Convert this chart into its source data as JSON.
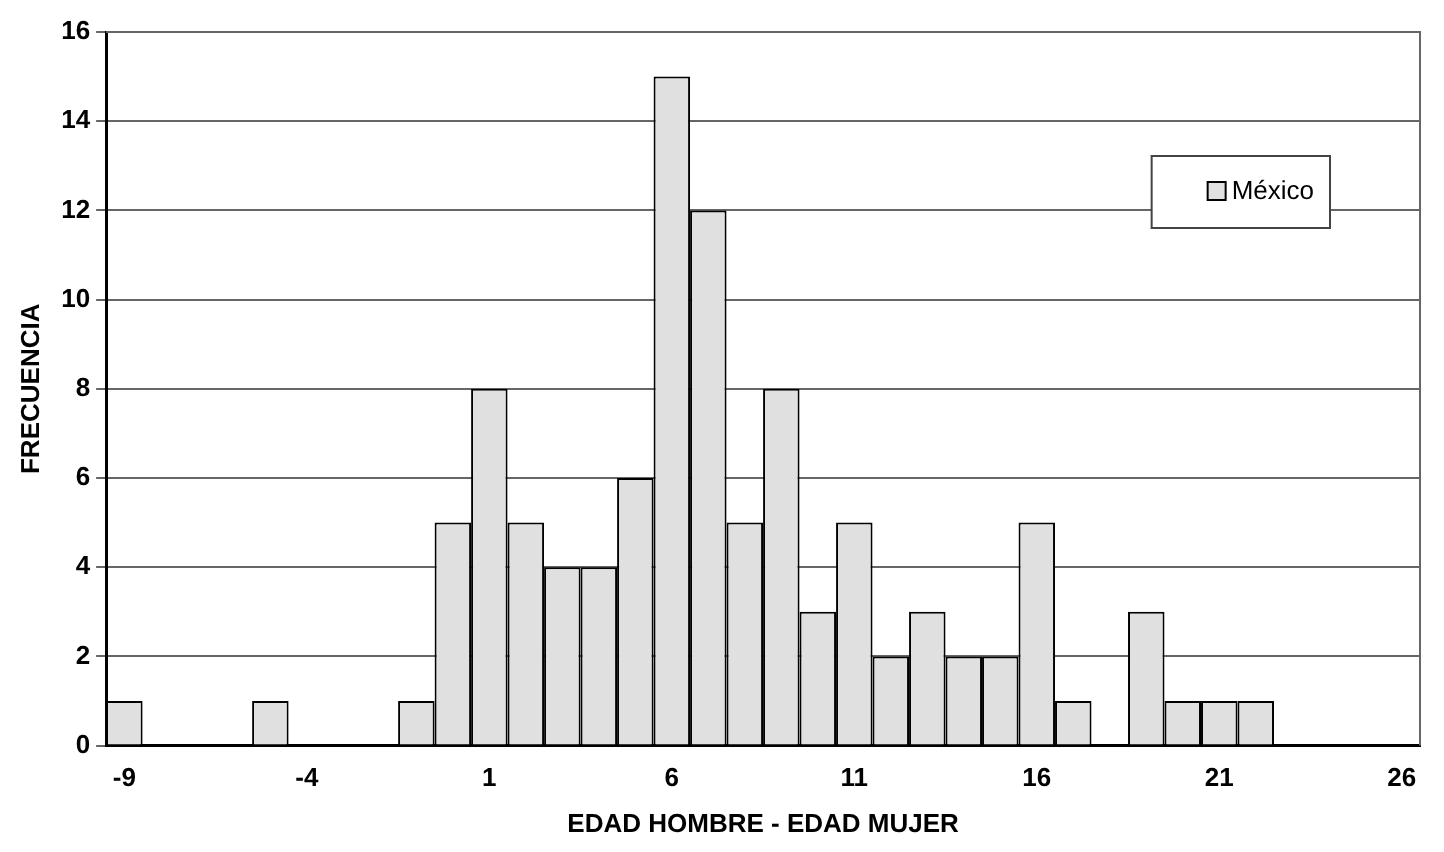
{
  "chart_data": {
    "type": "histogram",
    "xlabel": "EDAD HOMBRE - EDAD MUJER",
    "ylabel": "FRECUENCIA",
    "bins": [
      -9.5,
      -8.5,
      -7.5,
      -6.5,
      -5.5,
      -4.5,
      -3.5,
      -2.5,
      -1.5,
      -0.5,
      0.5,
      1.5,
      2.5,
      3.5,
      4.5,
      5.5,
      6.5,
      7.5,
      8.5,
      9.5,
      10.5,
      11.5,
      12.5,
      13.5,
      14.5,
      15.5,
      16.5,
      17.5,
      18.5,
      19.5,
      20.5,
      21.5,
      22.5,
      23.5,
      24.5,
      25.5,
      26.5
    ],
    "series": [
      {
        "name": "México",
        "color": "#e0e0e0",
        "values": [
          1,
          0,
          0,
          0,
          1,
          0,
          0,
          0,
          1,
          5,
          8,
          5,
          4,
          4,
          6,
          15,
          12,
          5,
          8,
          3,
          5,
          2,
          3,
          2,
          2,
          5,
          1,
          0,
          3,
          1,
          1,
          1,
          0,
          0,
          0,
          0
        ]
      }
    ],
    "xlim": [
      -9.5,
      26.5
    ],
    "xticks": [
      -9,
      -4,
      1,
      6,
      11,
      16,
      21,
      26
    ],
    "ylim": [
      0,
      16
    ],
    "yticks": [
      0,
      2,
      4,
      6,
      8,
      10,
      12,
      14,
      16
    ],
    "grid": "y",
    "legend": "top right"
  }
}
